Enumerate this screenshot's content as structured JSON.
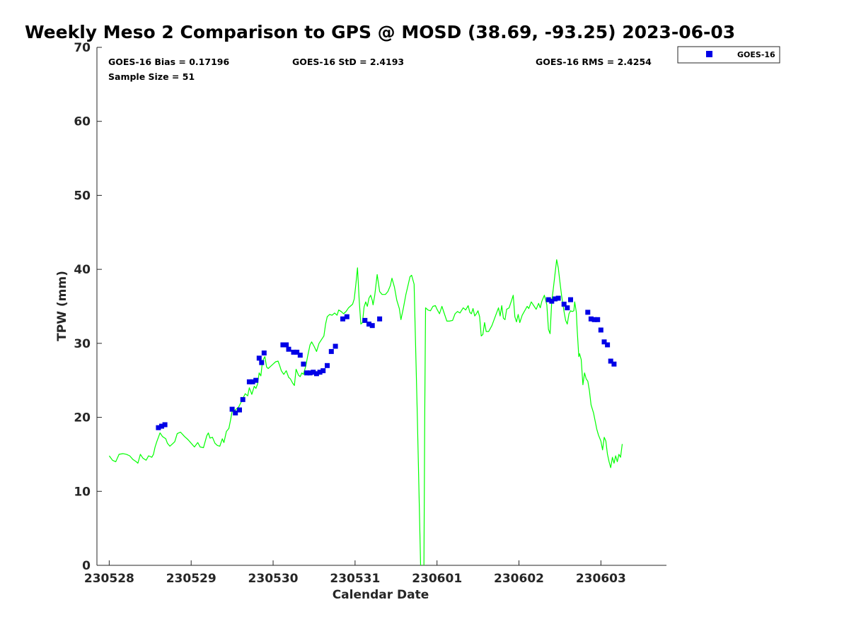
{
  "chart_data": {
    "type": "scatter",
    "title": "Weekly Meso 2 Comparison to GPS @ MOSD (38.69, -93.25) 2023-06-03",
    "xlabel": "Calendar Date",
    "ylabel": "TPW (mm)",
    "x_unit": "days from 230528 00Z",
    "xlim": [
      -0.15,
      6.8
    ],
    "ylim": [
      0,
      70
    ],
    "x_ticks": [
      {
        "value": 0,
        "label": "230528"
      },
      {
        "value": 1,
        "label": "230529"
      },
      {
        "value": 2,
        "label": "230530"
      },
      {
        "value": 3,
        "label": "230531"
      },
      {
        "value": 4,
        "label": "230601"
      },
      {
        "value": 5,
        "label": "230602"
      },
      {
        "value": 6,
        "label": "230603"
      }
    ],
    "y_ticks": [
      {
        "value": 0,
        "label": "0"
      },
      {
        "value": 10,
        "label": "10"
      },
      {
        "value": 20,
        "label": "20"
      },
      {
        "value": 30,
        "label": "30"
      },
      {
        "value": 40,
        "label": "40"
      },
      {
        "value": 50,
        "label": "50"
      },
      {
        "value": 60,
        "label": "60"
      },
      {
        "value": 70,
        "label": "70"
      }
    ],
    "grid": false,
    "legend_position": "top-right outside",
    "stats": {
      "bias": "GOES-16 Bias = 0.17196",
      "std": "GOES-16 StD = 2.4193",
      "rms": "GOES-16 RMS = 2.4254",
      "sample_size": "Sample Size = 51"
    },
    "series": [
      {
        "name": "GPS",
        "kind": "line",
        "color": "#00ff00",
        "points": [
          [
            0.0,
            14.8
          ],
          [
            0.04,
            14.2
          ],
          [
            0.08,
            14.0
          ],
          [
            0.12,
            15.0
          ],
          [
            0.17,
            15.1
          ],
          [
            0.21,
            15.0
          ],
          [
            0.25,
            14.8
          ],
          [
            0.29,
            14.3
          ],
          [
            0.33,
            14.0
          ],
          [
            0.35,
            13.8
          ],
          [
            0.38,
            15.0
          ],
          [
            0.41,
            14.5
          ],
          [
            0.45,
            14.2
          ],
          [
            0.48,
            14.8
          ],
          [
            0.52,
            14.6
          ],
          [
            0.54,
            15.0
          ],
          [
            0.56,
            16.0
          ],
          [
            0.58,
            16.7
          ],
          [
            0.62,
            17.9
          ],
          [
            0.65,
            17.4
          ],
          [
            0.69,
            17.1
          ],
          [
            0.71,
            16.5
          ],
          [
            0.74,
            16.1
          ],
          [
            0.77,
            16.4
          ],
          [
            0.8,
            16.7
          ],
          [
            0.83,
            17.8
          ],
          [
            0.87,
            18.0
          ],
          [
            0.92,
            17.4
          ],
          [
            0.96,
            17.0
          ],
          [
            1.0,
            16.5
          ],
          [
            1.04,
            16.0
          ],
          [
            1.08,
            16.6
          ],
          [
            1.11,
            16.0
          ],
          [
            1.15,
            15.9
          ],
          [
            1.19,
            17.5
          ],
          [
            1.21,
            17.9
          ],
          [
            1.23,
            17.2
          ],
          [
            1.26,
            17.3
          ],
          [
            1.29,
            16.5
          ],
          [
            1.32,
            16.2
          ],
          [
            1.35,
            16.1
          ],
          [
            1.38,
            17.1
          ],
          [
            1.4,
            16.6
          ],
          [
            1.43,
            18.1
          ],
          [
            1.46,
            18.5
          ],
          [
            1.48,
            19.6
          ],
          [
            1.5,
            20.8
          ],
          [
            1.54,
            21.0
          ],
          [
            1.58,
            21.4
          ],
          [
            1.62,
            22.3
          ],
          [
            1.66,
            23.2
          ],
          [
            1.69,
            22.9
          ],
          [
            1.71,
            24.0
          ],
          [
            1.74,
            23.1
          ],
          [
            1.77,
            24.2
          ],
          [
            1.79,
            23.9
          ],
          [
            1.81,
            24.5
          ],
          [
            1.83,
            26.0
          ],
          [
            1.85,
            25.6
          ],
          [
            1.87,
            27.6
          ],
          [
            1.9,
            28.2
          ],
          [
            1.92,
            26.8
          ],
          [
            1.94,
            26.6
          ],
          [
            1.97,
            26.9
          ],
          [
            2.0,
            27.2
          ],
          [
            2.03,
            27.5
          ],
          [
            2.06,
            27.6
          ],
          [
            2.08,
            27.0
          ],
          [
            2.1,
            26.3
          ],
          [
            2.13,
            25.8
          ],
          [
            2.16,
            26.3
          ],
          [
            2.19,
            25.4
          ],
          [
            2.21,
            25.2
          ],
          [
            2.24,
            24.6
          ],
          [
            2.26,
            24.3
          ],
          [
            2.28,
            26.5
          ],
          [
            2.31,
            25.7
          ],
          [
            2.33,
            25.5
          ],
          [
            2.35,
            26.0
          ],
          [
            2.37,
            25.8
          ],
          [
            2.4,
            27.0
          ],
          [
            2.42,
            28.2
          ],
          [
            2.45,
            29.8
          ],
          [
            2.47,
            30.2
          ],
          [
            2.5,
            29.6
          ],
          [
            2.53,
            28.9
          ],
          [
            2.56,
            30.0
          ],
          [
            2.59,
            30.5
          ],
          [
            2.62,
            31.0
          ],
          [
            2.64,
            32.6
          ],
          [
            2.66,
            33.6
          ],
          [
            2.69,
            33.9
          ],
          [
            2.72,
            33.8
          ],
          [
            2.75,
            34.1
          ],
          [
            2.78,
            33.8
          ],
          [
            2.8,
            34.5
          ],
          [
            2.83,
            34.3
          ],
          [
            2.86,
            34.0
          ],
          [
            2.89,
            34.3
          ],
          [
            2.92,
            34.8
          ],
          [
            2.95,
            35.1
          ],
          [
            2.97,
            35.3
          ],
          [
            2.99,
            36.0
          ],
          [
            3.01,
            38.0
          ],
          [
            3.03,
            40.2
          ],
          [
            3.05,
            36.0
          ],
          [
            3.07,
            32.6
          ],
          [
            3.09,
            32.8
          ],
          [
            3.11,
            34.9
          ],
          [
            3.13,
            35.6
          ],
          [
            3.15,
            35.0
          ],
          [
            3.17,
            36.1
          ],
          [
            3.19,
            36.5
          ],
          [
            3.21,
            35.8
          ],
          [
            3.22,
            35.2
          ],
          [
            3.24,
            36.5
          ],
          [
            3.27,
            39.3
          ],
          [
            3.3,
            37.0
          ],
          [
            3.33,
            36.6
          ],
          [
            3.37,
            36.6
          ],
          [
            3.4,
            37.0
          ],
          [
            3.43,
            37.8
          ],
          [
            3.45,
            38.8
          ],
          [
            3.48,
            37.6
          ],
          [
            3.51,
            35.8
          ],
          [
            3.54,
            34.7
          ],
          [
            3.56,
            33.2
          ],
          [
            3.59,
            34.8
          ],
          [
            3.62,
            36.6
          ],
          [
            3.65,
            38.0
          ],
          [
            3.67,
            39.0
          ],
          [
            3.69,
            39.2
          ],
          [
            3.72,
            38.0
          ],
          [
            3.76,
            20.0
          ],
          [
            3.8,
            0
          ],
          [
            3.82,
            -1
          ],
          [
            3.84,
            0
          ],
          [
            3.85,
            20.0
          ],
          [
            3.86,
            34.8
          ],
          [
            3.89,
            34.5
          ],
          [
            3.92,
            34.4
          ],
          [
            3.95,
            35.0
          ],
          [
            3.98,
            35.1
          ],
          [
            4.0,
            34.6
          ],
          [
            4.03,
            34.0
          ],
          [
            4.06,
            35.0
          ],
          [
            4.09,
            34.0
          ],
          [
            4.12,
            33.0
          ],
          [
            4.15,
            33.0
          ],
          [
            4.19,
            33.1
          ],
          [
            4.22,
            34.0
          ],
          [
            4.25,
            34.3
          ],
          [
            4.28,
            34.1
          ],
          [
            4.32,
            34.8
          ],
          [
            4.35,
            34.5
          ],
          [
            4.38,
            35.1
          ],
          [
            4.4,
            34.2
          ],
          [
            4.42,
            34.0
          ],
          [
            4.44,
            34.7
          ],
          [
            4.46,
            33.7
          ],
          [
            4.48,
            34.0
          ],
          [
            4.5,
            34.4
          ],
          [
            4.52,
            33.6
          ],
          [
            4.54,
            31.0
          ],
          [
            4.56,
            31.2
          ],
          [
            4.58,
            32.8
          ],
          [
            4.6,
            31.6
          ],
          [
            4.63,
            31.6
          ],
          [
            4.67,
            32.4
          ],
          [
            4.71,
            33.6
          ],
          [
            4.75,
            34.8
          ],
          [
            4.77,
            33.7
          ],
          [
            4.79,
            35.1
          ],
          [
            4.81,
            33.4
          ],
          [
            4.83,
            33.2
          ],
          [
            4.85,
            34.6
          ],
          [
            4.88,
            34.8
          ],
          [
            4.91,
            35.8
          ],
          [
            4.93,
            36.5
          ],
          [
            4.95,
            33.6
          ],
          [
            4.97,
            32.9
          ],
          [
            4.99,
            33.9
          ],
          [
            5.01,
            32.8
          ],
          [
            5.04,
            33.8
          ],
          [
            5.07,
            34.4
          ],
          [
            5.1,
            35.0
          ],
          [
            5.12,
            34.7
          ],
          [
            5.15,
            35.6
          ],
          [
            5.18,
            35.1
          ],
          [
            5.21,
            34.6
          ],
          [
            5.24,
            35.4
          ],
          [
            5.26,
            34.8
          ],
          [
            5.28,
            35.7
          ],
          [
            5.31,
            36.5
          ],
          [
            5.34,
            35.2
          ],
          [
            5.36,
            31.9
          ],
          [
            5.38,
            31.3
          ],
          [
            5.4,
            35.6
          ],
          [
            5.42,
            37.5
          ],
          [
            5.44,
            39.4
          ],
          [
            5.46,
            41.3
          ],
          [
            5.48,
            40.2
          ],
          [
            5.5,
            38.3
          ],
          [
            5.52,
            36.5
          ],
          [
            5.55,
            34.3
          ],
          [
            5.57,
            33.1
          ],
          [
            5.59,
            32.6
          ],
          [
            5.61,
            34.0
          ],
          [
            5.63,
            34.4
          ],
          [
            5.65,
            34.3
          ],
          [
            5.67,
            34.4
          ],
          [
            5.68,
            35.6
          ],
          [
            5.7,
            34.2
          ],
          [
            5.71,
            32.0
          ],
          [
            5.73,
            28.2
          ],
          [
            5.74,
            28.6
          ],
          [
            5.76,
            27.8
          ],
          [
            5.78,
            24.4
          ],
          [
            5.8,
            26.0
          ],
          [
            5.82,
            25.2
          ],
          [
            5.84,
            24.9
          ],
          [
            5.86,
            23.6
          ],
          [
            5.88,
            21.7
          ],
          [
            5.91,
            20.6
          ],
          [
            5.93,
            19.5
          ],
          [
            5.95,
            18.4
          ],
          [
            5.97,
            17.6
          ],
          [
            6.0,
            16.8
          ],
          [
            6.02,
            15.6
          ],
          [
            6.04,
            17.3
          ],
          [
            6.06,
            16.8
          ],
          [
            6.08,
            15.0
          ],
          [
            6.1,
            14.0
          ],
          [
            6.12,
            13.2
          ],
          [
            6.14,
            14.6
          ],
          [
            6.16,
            13.8
          ],
          [
            6.18,
            14.8
          ],
          [
            6.2,
            14.0
          ],
          [
            6.22,
            15.0
          ],
          [
            6.24,
            14.6
          ],
          [
            6.26,
            16.4
          ]
        ]
      },
      {
        "name": "GOES-16",
        "kind": "scatter",
        "color": "#0000e6",
        "points": [
          [
            0.6,
            18.6
          ],
          [
            0.64,
            18.8
          ],
          [
            0.68,
            19.0
          ],
          [
            1.5,
            21.1
          ],
          [
            1.54,
            20.6
          ],
          [
            1.59,
            21.0
          ],
          [
            1.63,
            22.4
          ],
          [
            1.71,
            24.8
          ],
          [
            1.75,
            24.8
          ],
          [
            1.79,
            25.0
          ],
          [
            1.83,
            28.0
          ],
          [
            1.86,
            27.4
          ],
          [
            1.89,
            28.7
          ],
          [
            2.12,
            29.8
          ],
          [
            2.16,
            29.8
          ],
          [
            2.19,
            29.2
          ],
          [
            2.25,
            28.8
          ],
          [
            2.29,
            28.8
          ],
          [
            2.33,
            28.4
          ],
          [
            2.37,
            27.2
          ],
          [
            2.41,
            26.0
          ],
          [
            2.45,
            26.0
          ],
          [
            2.49,
            26.1
          ],
          [
            2.53,
            25.9
          ],
          [
            2.57,
            26.1
          ],
          [
            2.61,
            26.3
          ],
          [
            2.66,
            27.0
          ],
          [
            2.71,
            28.9
          ],
          [
            2.76,
            29.6
          ],
          [
            2.85,
            33.3
          ],
          [
            2.9,
            33.6
          ],
          [
            3.12,
            33.1
          ],
          [
            3.17,
            32.6
          ],
          [
            3.21,
            32.4
          ],
          [
            3.3,
            33.3
          ],
          [
            5.36,
            35.9
          ],
          [
            5.4,
            35.7
          ],
          [
            5.44,
            36.0
          ],
          [
            5.48,
            36.1
          ],
          [
            5.55,
            35.3
          ],
          [
            5.59,
            34.8
          ],
          [
            5.63,
            35.9
          ],
          [
            5.84,
            34.2
          ],
          [
            5.88,
            33.3
          ],
          [
            5.92,
            33.2
          ],
          [
            5.96,
            33.2
          ],
          [
            6.0,
            31.8
          ],
          [
            6.04,
            30.2
          ],
          [
            6.08,
            29.8
          ],
          [
            6.12,
            27.6
          ],
          [
            6.16,
            27.2
          ]
        ]
      }
    ]
  },
  "legend": {
    "items": [
      {
        "label": "GOES-16",
        "color": "#0000e6"
      }
    ]
  }
}
